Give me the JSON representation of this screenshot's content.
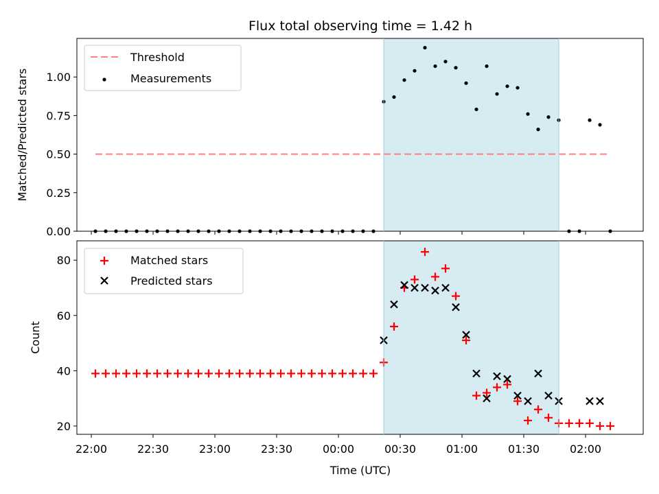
{
  "chart_data": [
    {
      "type": "scatter",
      "title": "Flux total observing time = 1.42 h",
      "xlabel": "",
      "ylabel": "Matched/Predicted stars",
      "xlim": [
        "21:53",
        "02:28"
      ],
      "ylim": [
        0.0,
        1.25
      ],
      "yticks": [
        0.0,
        0.25,
        0.5,
        0.75,
        1.0
      ],
      "ytick_labels": [
        "0.00",
        "0.25",
        "0.50",
        "0.75",
        "1.00"
      ],
      "grid": false,
      "legend_position": "upper-left",
      "shaded_interval": {
        "start": "00:22",
        "end": "01:47",
        "color": "#add8e6"
      },
      "threshold": {
        "name": "Threshold",
        "value": 0.5,
        "x_start": "22:02",
        "x_end": "02:12",
        "color": "#ff7f7f"
      },
      "series": [
        {
          "name": "Measurements",
          "color": "#000000",
          "x": [
            "22:02",
            "22:07",
            "22:12",
            "22:17",
            "22:22",
            "22:27",
            "22:32",
            "22:37",
            "22:42",
            "22:47",
            "22:52",
            "22:57",
            "23:02",
            "23:07",
            "23:12",
            "23:17",
            "23:22",
            "23:27",
            "23:32",
            "23:37",
            "23:42",
            "23:47",
            "23:52",
            "23:57",
            "00:02",
            "00:07",
            "00:12",
            "00:17",
            "00:22",
            "00:27",
            "00:32",
            "00:37",
            "00:42",
            "00:47",
            "00:52",
            "00:57",
            "01:02",
            "01:07",
            "01:12",
            "01:17",
            "01:22",
            "01:27",
            "01:32",
            "01:37",
            "01:42",
            "01:47",
            "01:52",
            "01:57",
            "02:02",
            "02:07",
            "02:12"
          ],
          "y": [
            0,
            0,
            0,
            0,
            0,
            0,
            0,
            0,
            0,
            0,
            0,
            0,
            0,
            0,
            0,
            0,
            0,
            0,
            0,
            0,
            0,
            0,
            0,
            0,
            0,
            0,
            0,
            0,
            0.84,
            0.87,
            0.98,
            1.04,
            1.19,
            1.07,
            1.1,
            1.06,
            0.96,
            0.79,
            1.07,
            0.89,
            0.94,
            0.93,
            0.76,
            0.66,
            0.74,
            0.72,
            0,
            0,
            0.72,
            0.69,
            0
          ]
        }
      ]
    },
    {
      "type": "scatter",
      "title": "",
      "xlabel": "Time (UTC)",
      "ylabel": "Count",
      "xlim": [
        "21:53",
        "02:28"
      ],
      "ylim": [
        17,
        87
      ],
      "yticks": [
        20,
        40,
        60,
        80
      ],
      "xtick_labels": [
        "22:00",
        "22:30",
        "23:00",
        "23:30",
        "00:00",
        "00:30",
        "01:00",
        "01:30",
        "02:00"
      ],
      "grid": false,
      "legend_position": "upper-left",
      "shaded_interval": {
        "start": "00:22",
        "end": "01:47",
        "color": "#add8e6"
      },
      "series": [
        {
          "name": "Matched stars",
          "color": "#ff0000",
          "marker": "+",
          "x": [
            "22:02",
            "22:07",
            "22:12",
            "22:17",
            "22:22",
            "22:27",
            "22:32",
            "22:37",
            "22:42",
            "22:47",
            "22:52",
            "22:57",
            "23:02",
            "23:07",
            "23:12",
            "23:17",
            "23:22",
            "23:27",
            "23:32",
            "23:37",
            "23:42",
            "23:47",
            "23:52",
            "23:57",
            "00:02",
            "00:07",
            "00:12",
            "00:17",
            "00:22",
            "00:27",
            "00:32",
            "00:37",
            "00:42",
            "00:47",
            "00:52",
            "00:57",
            "01:02",
            "01:07",
            "01:12",
            "01:17",
            "01:22",
            "01:27",
            "01:32",
            "01:37",
            "01:42",
            "01:47",
            "01:52",
            "01:57",
            "02:02",
            "02:07",
            "02:12"
          ],
          "y": [
            39,
            39,
            39,
            39,
            39,
            39,
            39,
            39,
            39,
            39,
            39,
            39,
            39,
            39,
            39,
            39,
            39,
            39,
            39,
            39,
            39,
            39,
            39,
            39,
            39,
            39,
            39,
            39,
            43,
            56,
            70,
            73,
            83,
            74,
            77,
            67,
            51,
            31,
            32,
            34,
            35,
            29,
            22,
            26,
            23,
            21,
            21,
            21,
            21,
            20,
            20
          ]
        },
        {
          "name": "Predicted stars",
          "color": "#000000",
          "marker": "x",
          "x": [
            "00:22",
            "00:27",
            "00:32",
            "00:37",
            "00:42",
            "00:47",
            "00:52",
            "00:57",
            "01:02",
            "01:07",
            "01:12",
            "01:17",
            "01:22",
            "01:27",
            "01:32",
            "01:37",
            "01:42",
            "01:47",
            "02:02",
            "02:07"
          ],
          "y": [
            51,
            64,
            71,
            70,
            70,
            69,
            70,
            63,
            53,
            39,
            30,
            38,
            37,
            31,
            29,
            39,
            31,
            29,
            29,
            29
          ]
        }
      ]
    }
  ]
}
